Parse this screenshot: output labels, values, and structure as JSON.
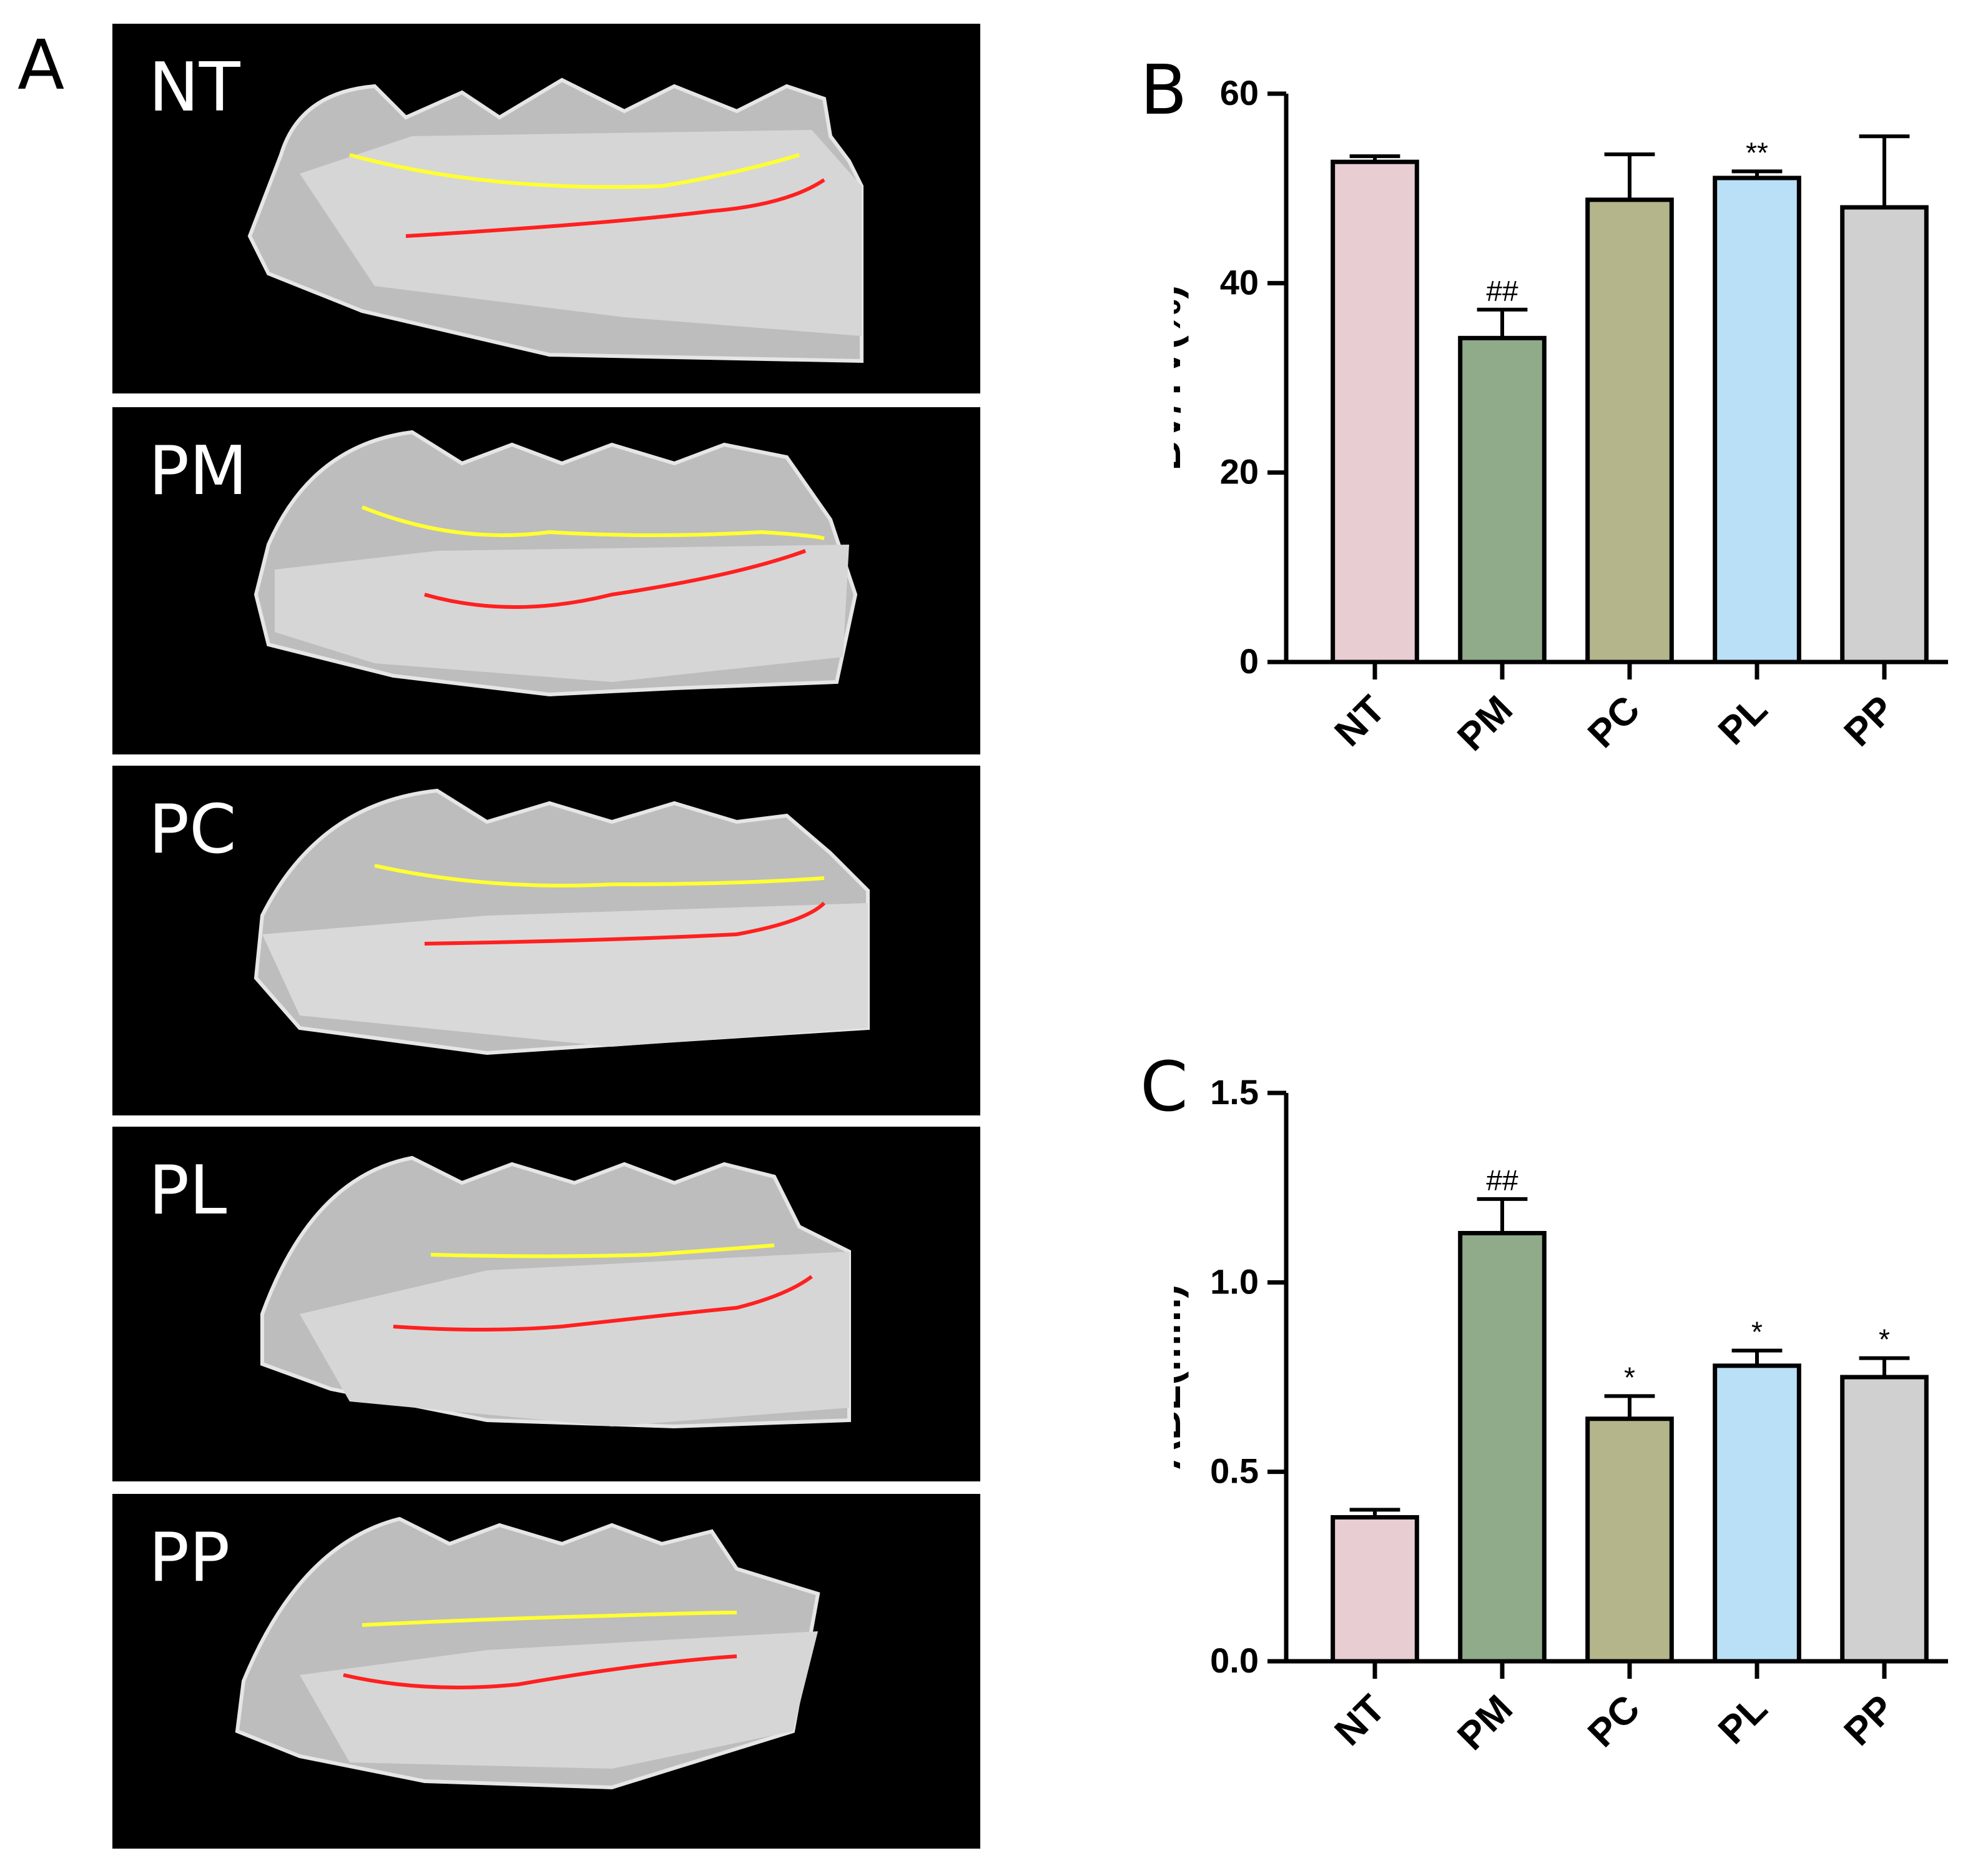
{
  "panel_a": {
    "letter": "A",
    "scans": [
      {
        "label": "NT"
      },
      {
        "label": "PM"
      },
      {
        "label": "PC"
      },
      {
        "label": "PL"
      },
      {
        "label": "PP"
      }
    ]
  },
  "panel_b": {
    "letter": "B"
  },
  "panel_c": {
    "letter": "C"
  },
  "chart_data": [
    {
      "type": "bar",
      "panel": "B",
      "title": "",
      "xlabel": "",
      "ylabel": "BV/TV(%)",
      "ylim": [
        0,
        60
      ],
      "yticks": [
        "0",
        "20",
        "40",
        "60"
      ],
      "categories": [
        "NT",
        "PM",
        "PC",
        "PL",
        "PP"
      ],
      "values": [
        52.8,
        34.2,
        48.8,
        51.1,
        48.0
      ],
      "errors": [
        0.6,
        3.0,
        4.8,
        0.7,
        7.5
      ],
      "annotations": [
        "",
        "##",
        "",
        "**",
        ""
      ],
      "colors": [
        "#e8cdd3",
        "#8fab8a",
        "#b4b58a",
        "#b9e0f7",
        "#d0d0d0"
      ],
      "grid": false
    },
    {
      "type": "bar",
      "panel": "C",
      "title": "",
      "xlabel": "",
      "ylabel": "ABL(mm)",
      "ylim": [
        0,
        1.5
      ],
      "yticks": [
        "0.0",
        "0.5",
        "1.0",
        "1.5"
      ],
      "categories": [
        "NT",
        "PM",
        "PC",
        "PL",
        "PP"
      ],
      "values": [
        0.38,
        1.13,
        0.64,
        0.78,
        0.75
      ],
      "errors": [
        0.02,
        0.09,
        0.06,
        0.04,
        0.05
      ],
      "annotations": [
        "",
        "##",
        "*",
        "*",
        "*"
      ],
      "colors": [
        "#e8cdd3",
        "#8fab8a",
        "#b4b58a",
        "#b9e0f7",
        "#d0d0d0"
      ],
      "grid": false
    }
  ]
}
